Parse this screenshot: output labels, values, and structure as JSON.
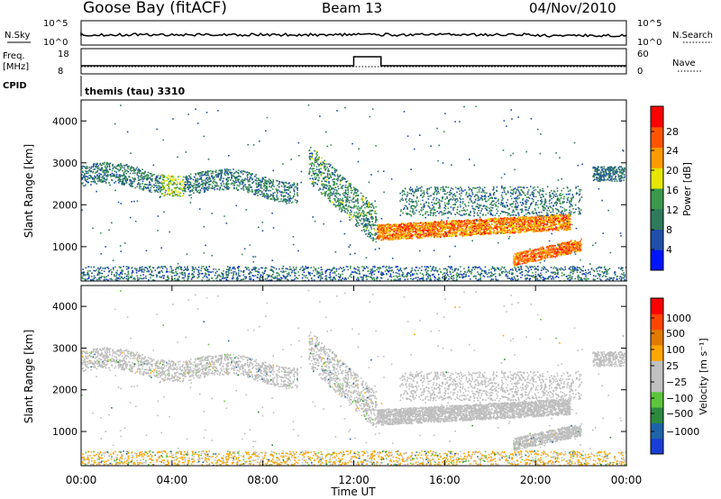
{
  "header": {
    "station": "Goose Bay (fitACF)",
    "beam": "Beam 13",
    "date": "04/Nov/2010"
  },
  "colors": {
    "power_scale": [
      "#0015ff",
      "#1f4fa8",
      "#2e7a5b",
      "#3a9a4c",
      "#e6e600",
      "#ff9900",
      "#ff5500",
      "#ff0000"
    ],
    "velocity_scale": [
      "#1a3fd6",
      "#1f63a9",
      "#2c8a3e",
      "#5cc53b",
      "#c0c0c0",
      "#c0c0c0",
      "#ffa500",
      "#e07a00",
      "#ff4500",
      "#ff0000"
    ],
    "ground_scatter": "#bebebe"
  },
  "chart_data": [
    {
      "type": "line",
      "name": "nsky-panel",
      "left_label": "N.Sky",
      "right_label": "N.Search",
      "left_ticks": [
        "10^5",
        "10^0"
      ],
      "right_ticks": [
        "10^5",
        "10^0"
      ],
      "x_range_hours": [
        0,
        24
      ],
      "description_series": "noise sky level, near-constant"
    },
    {
      "type": "line",
      "name": "freq-panel",
      "left_label_top": "Freq.",
      "left_label_bottom": "[MHz]",
      "right_label": "Nave",
      "left_ticks": [
        "18",
        "8"
      ],
      "right_ticks": [
        "60",
        "0"
      ],
      "cpid_label": "CPID",
      "cpid_text": "themis (tau) 3310",
      "nave_step": {
        "start_hour": 12.0,
        "end_hour": 13.2,
        "value": 60
      },
      "x_range_hours": [
        0,
        24
      ]
    },
    {
      "type": "heatmap",
      "name": "power-panel",
      "ylabel": "Slant Range [km]",
      "yticks": [
        1000,
        2000,
        3000,
        4000
      ],
      "ylim": [
        180,
        4500
      ],
      "colorbar_label": "Power [dB]",
      "colorbar_ticks": [
        "28",
        "24",
        "20",
        "16",
        "12",
        "8",
        "4"
      ],
      "zlim": [
        0,
        30
      ],
      "x_range_hours": [
        0,
        24
      ]
    },
    {
      "type": "heatmap",
      "name": "velocity-panel",
      "ylabel": "Slant Range [km]",
      "yticks": [
        1000,
        2000,
        3000,
        4000
      ],
      "ylim": [
        180,
        4500
      ],
      "colorbar_label": "Velocity [m s⁻¹]",
      "colorbar_ticks": [
        "1000",
        "500",
        "100",
        "25",
        "−25",
        "−100",
        "−500",
        "−1000"
      ],
      "x_range_hours": [
        0,
        24
      ],
      "xticks": [
        "00:00",
        "04:00",
        "08:00",
        "12:00",
        "16:00",
        "20:00",
        "00:00"
      ],
      "xlabel": "Time UT"
    }
  ]
}
